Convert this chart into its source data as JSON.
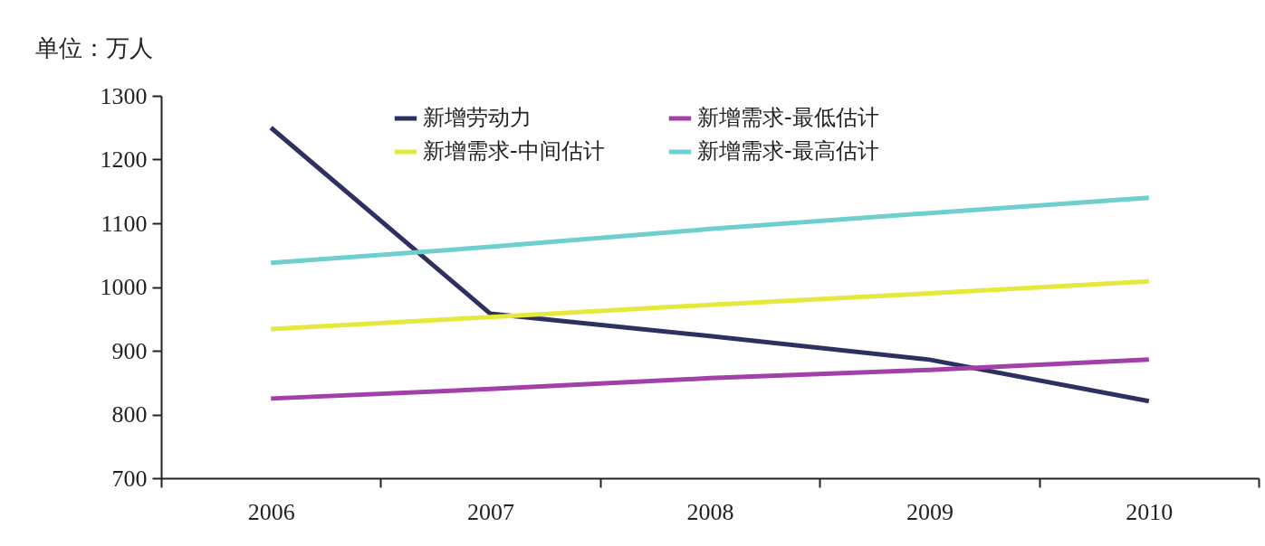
{
  "chart_data": {
    "type": "line",
    "ylabel": "单位：万人",
    "categories": [
      "2006",
      "2007",
      "2008",
      "2009",
      "2010"
    ],
    "ylim": [
      700,
      1300
    ],
    "yticks": [
      700,
      800,
      900,
      1000,
      1100,
      1200,
      1300
    ],
    "grid": false,
    "legend": "top",
    "marker": "none",
    "line_style": "solid",
    "series": [
      {
        "name": "新增劳动力",
        "color": "#2e3160",
        "values": [
          1250,
          958,
          923,
          886,
          821
        ]
      },
      {
        "name": "新增需求-最低估计",
        "color": "#a040a8",
        "values": [
          825,
          840,
          857,
          870,
          886
        ]
      },
      {
        "name": "新增需求-中间估计",
        "color": "#e4ea3c",
        "values": [
          934,
          953,
          972,
          990,
          1009
        ]
      },
      {
        "name": "新增需求-最高估计",
        "color": "#6fcfcf",
        "values": [
          1038,
          1063,
          1091,
          1116,
          1140
        ]
      }
    ]
  }
}
